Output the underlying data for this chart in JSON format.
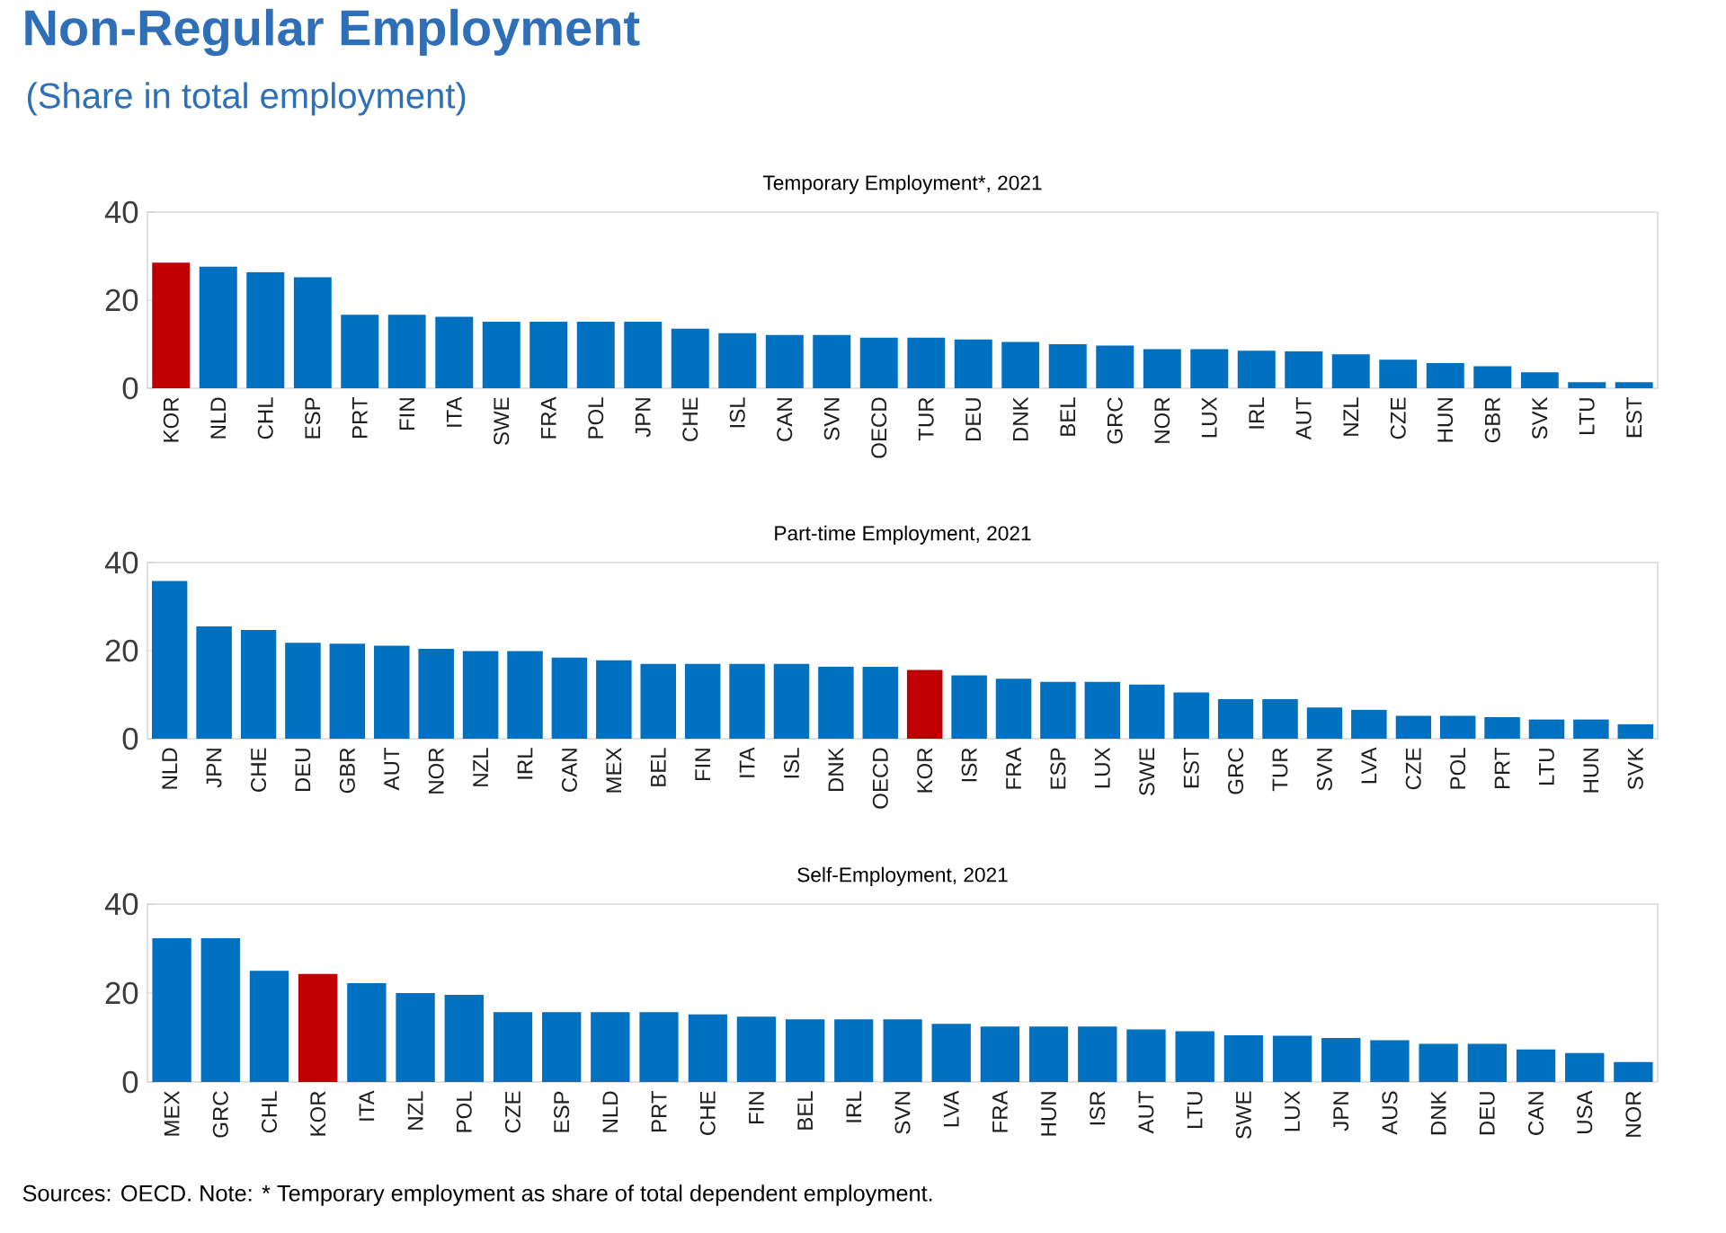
{
  "chart_data": [
    {
      "type": "other",
      "title": "Non-Regular Employment",
      "subtitle": "(Share in total employment)",
      "color": "#2e6fb7"
    },
    {
      "type": "bar",
      "title": "Temporary Employment*, 2021",
      "categories": [
        "KOR",
        "NLD",
        "CHL",
        "ESP",
        "PRT",
        "FIN",
        "ITA",
        "SWE",
        "FRA",
        "POL",
        "JPN",
        "CHE",
        "ISL",
        "CAN",
        "SVN",
        "OECD",
        "TUR",
        "DEU",
        "DNK",
        "BEL",
        "GRC",
        "NOR",
        "LUX",
        "IRL",
        "AUT",
        "NZL",
        "CZE",
        "HUN",
        "GBR",
        "SVK",
        "LTU",
        "EST"
      ],
      "values": [
        28.5,
        27.6,
        26.4,
        25.2,
        16.7,
        16.7,
        16.2,
        15.1,
        15.1,
        15.1,
        15.1,
        13.5,
        12.5,
        12.1,
        12.1,
        11.5,
        11.5,
        11.1,
        10.5,
        10,
        9.7,
        8.9,
        8.9,
        8.5,
        8.4,
        7.7,
        6.5,
        5.7,
        5,
        3.6,
        1.4,
        1.4
      ],
      "colors": [
        "#c00000",
        "#0070c0",
        "#0070c0",
        "#0070c0",
        "#0070c0",
        "#0070c0",
        "#0070c0",
        "#0070c0",
        "#0070c0",
        "#0070c0",
        "#0070c0",
        "#0070c0",
        "#0070c0",
        "#0070c0",
        "#0070c0",
        "#0070c0",
        "#0070c0",
        "#0070c0",
        "#0070c0",
        "#0070c0",
        "#0070c0",
        "#0070c0",
        "#0070c0",
        "#0070c0",
        "#0070c0",
        "#0070c0",
        "#0070c0",
        "#0070c0",
        "#0070c0",
        "#0070c0",
        "#0070c0",
        "#0070c0"
      ],
      "ylim": [
        0,
        40
      ],
      "yticks": [
        0,
        20,
        40
      ]
    },
    {
      "type": "bar",
      "title": "Part-time Employment, 2021",
      "categories": [
        "NLD",
        "JPN",
        "CHE",
        "DEU",
        "GBR",
        "AUT",
        "NOR",
        "NZL",
        "IRL",
        "CAN",
        "MEX",
        "BEL",
        "FIN",
        "ITA",
        "ISL",
        "DNK",
        "OECD",
        "KOR",
        "ISR",
        "FRA",
        "ESP",
        "LUX",
        "SWE",
        "EST",
        "GRC",
        "TUR",
        "SVN",
        "LVA",
        "CZE",
        "POL",
        "PRT",
        "LTU",
        "HUN",
        "SVK"
      ],
      "values": [
        35.8,
        25.5,
        24.7,
        21.8,
        21.6,
        21.1,
        20.4,
        19.9,
        19.9,
        18.4,
        17.8,
        17,
        17,
        17,
        17,
        16.4,
        16.3,
        15.6,
        14.4,
        13.6,
        12.9,
        12.9,
        12.3,
        10.5,
        9,
        9,
        7.1,
        6.6,
        5.2,
        5.2,
        4.9,
        4.4,
        4.4,
        3.3
      ],
      "colors": [
        "#0070c0",
        "#0070c0",
        "#0070c0",
        "#0070c0",
        "#0070c0",
        "#0070c0",
        "#0070c0",
        "#0070c0",
        "#0070c0",
        "#0070c0",
        "#0070c0",
        "#0070c0",
        "#0070c0",
        "#0070c0",
        "#0070c0",
        "#0070c0",
        "#0070c0",
        "#c00000",
        "#0070c0",
        "#0070c0",
        "#0070c0",
        "#0070c0",
        "#0070c0",
        "#0070c0",
        "#0070c0",
        "#0070c0",
        "#0070c0",
        "#0070c0",
        "#0070c0",
        "#0070c0",
        "#0070c0",
        "#0070c0",
        "#0070c0",
        "#0070c0"
      ],
      "ylim": [
        0,
        40
      ],
      "yticks": [
        0,
        20,
        40
      ]
    },
    {
      "type": "bar",
      "title": "Self-Employment, 2021",
      "categories": [
        "MEX",
        "GRC",
        "CHL",
        "KOR",
        "ITA",
        "NZL",
        "POL",
        "CZE",
        "ESP",
        "NLD",
        "PRT",
        "CHE",
        "FIN",
        "BEL",
        "IRL",
        "SVN",
        "LVA",
        "FRA",
        "HUN",
        "ISR",
        "AUT",
        "LTU",
        "SWE",
        "LUX",
        "JPN",
        "AUS",
        "DNK",
        "DEU",
        "CAN",
        "USA",
        "NOR"
      ],
      "values": [
        32.3,
        32.3,
        25,
        24.3,
        22.2,
        20,
        19.6,
        15.7,
        15.7,
        15.7,
        15.7,
        15.2,
        14.7,
        14.1,
        14.1,
        14.1,
        13.1,
        12.5,
        12.5,
        12.5,
        11.8,
        11.4,
        10.5,
        10.4,
        9.9,
        9.4,
        8.6,
        8.6,
        7.3,
        6.5,
        4.5
      ],
      "colors": [
        "#0070c0",
        "#0070c0",
        "#0070c0",
        "#c00000",
        "#0070c0",
        "#0070c0",
        "#0070c0",
        "#0070c0",
        "#0070c0",
        "#0070c0",
        "#0070c0",
        "#0070c0",
        "#0070c0",
        "#0070c0",
        "#0070c0",
        "#0070c0",
        "#0070c0",
        "#0070c0",
        "#0070c0",
        "#0070c0",
        "#0070c0",
        "#0070c0",
        "#0070c0",
        "#0070c0",
        "#0070c0",
        "#0070c0",
        "#0070c0",
        "#0070c0",
        "#0070c0",
        "#0070c0",
        "#0070c0"
      ],
      "ylim": [
        0,
        40
      ],
      "yticks": [
        0,
        20,
        40
      ],
      "annotations": [
        "Sources: OECD. Note: * Temporary employment as share of total dependent employment."
      ]
    }
  ]
}
